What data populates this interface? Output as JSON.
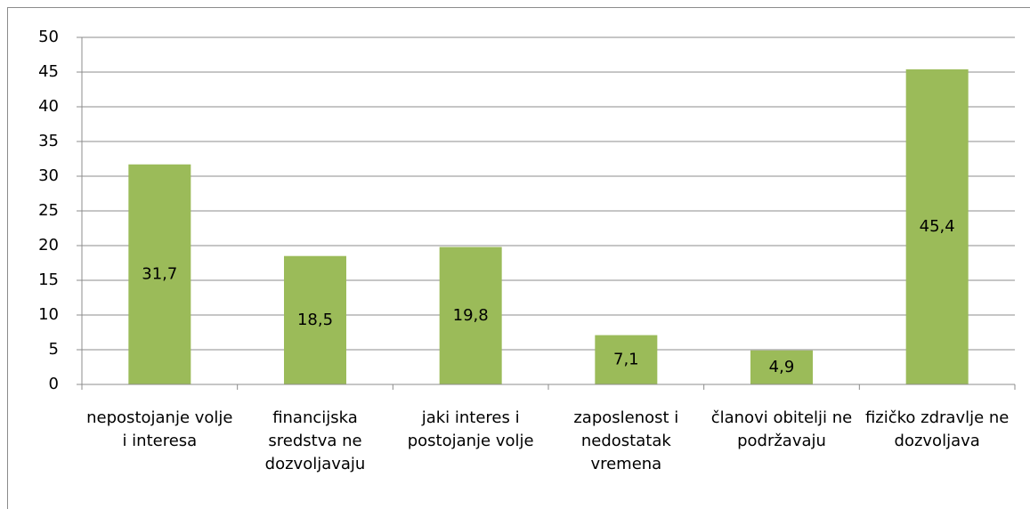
{
  "chart_data": {
    "type": "bar",
    "categories": [
      "nepostojanje volje i interesa",
      "financijska sredstva ne dozvoljavaju",
      "jaki interes i postojanje volje",
      "zaposlenost i nedostatak vremena",
      "članovi obitelji ne podržavaju",
      "fizičko zdravlje ne dozvoljava"
    ],
    "values": [
      31.7,
      18.5,
      19.8,
      7.1,
      4.9,
      45.4
    ],
    "value_labels": [
      "31,7",
      "18,5",
      "19,8",
      "7,1",
      "4,9",
      "45,4"
    ],
    "color": "#9bbb59",
    "ylim": [
      0,
      50
    ],
    "yticks": [
      0,
      5,
      10,
      15,
      20,
      25,
      30,
      35,
      40,
      45,
      50
    ],
    "grid": true
  }
}
